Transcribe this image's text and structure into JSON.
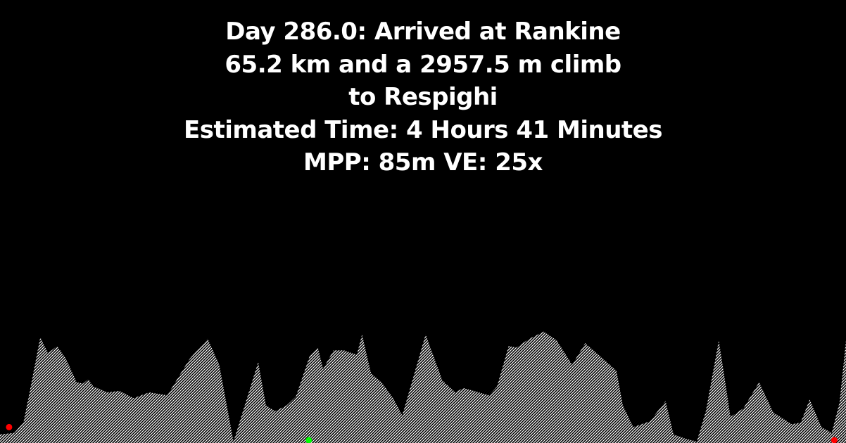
{
  "header": {
    "line1": "Day 286.0: Arrived at Rankine",
    "line2": "65.2 km and a 2957.5 m climb",
    "line3": "to Respighi",
    "line4": "Estimated Time: 4 Hours 41 Minutes",
    "line5": "MPP: 85m VE: 25x"
  },
  "colors": {
    "background": "#000000",
    "text": "#ffffff",
    "fill": "#ffffff",
    "start_marker": "#ff0000",
    "current_marker": "#00ff00",
    "end_marker": "#ff0000"
  },
  "chart_data": {
    "type": "area",
    "title": "",
    "xlabel": "",
    "ylabel": "",
    "grid": false,
    "legend": "none",
    "xlim": [
      0,
      65.2
    ],
    "ylim": [
      0,
      3.9
    ],
    "x": [
      0,
      1.1,
      1.8,
      2.3,
      3.1,
      3.7,
      4.4,
      5.1,
      5.9,
      6.4,
      6.8,
      7.2,
      8.3,
      9.2,
      10.3,
      11.5,
      12.9,
      14.6,
      16.0,
      16.9,
      18.0,
      19.9,
      20.5,
      21.2,
      22.1,
      22.8,
      23.9,
      24.5,
      24.9,
      25.7,
      26.5,
      27.5,
      27.9,
      28.6,
      29.4,
      30.3,
      31.0,
      32.8,
      34.1,
      35.1,
      35.7,
      36.9,
      37.7,
      38.3,
      39.2,
      39.8,
      40.8,
      41.9,
      42.9,
      44.1,
      45.1,
      46.5,
      47.5,
      48.0,
      48.8,
      50.1,
      51.3,
      51.9,
      52.8,
      53.7,
      54.4,
      55.4,
      56.3,
      57.3,
      58.5,
      59.6,
      60.5,
      61.0,
      61.7,
      62.4,
      63.3,
      64.1,
      64.7,
      65.2
    ],
    "values": [
      0.3,
      0.35,
      0.7,
      1.8,
      3.65,
      3.1,
      3.35,
      2.9,
      2.1,
      2.05,
      2.2,
      1.95,
      1.75,
      1.8,
      1.55,
      1.75,
      1.65,
      2.9,
      3.6,
      2.7,
      0.05,
      2.8,
      1.3,
      1.1,
      1.3,
      1.6,
      3.05,
      3.3,
      2.55,
      3.2,
      3.2,
      3.05,
      3.75,
      2.4,
      2.1,
      1.55,
      0.95,
      3.75,
      2.15,
      1.75,
      1.9,
      1.75,
      1.65,
      1.95,
      3.35,
      3.3,
      3.6,
      3.85,
      3.55,
      2.7,
      3.45,
      2.9,
      2.5,
      1.3,
      0.55,
      0.75,
      1.45,
      0.3,
      0.15,
      0.05,
      1.1,
      3.55,
      0.9,
      1.2,
      2.1,
      1.05,
      0.8,
      0.65,
      0.7,
      1.5,
      0.55,
      0.35,
      1.4,
      3.55
    ],
    "markers": [
      {
        "role": "start",
        "x": 0.7,
        "y": 0.55
      },
      {
        "role": "current",
        "x": 23.8,
        "y": 0.05
      },
      {
        "role": "end",
        "x": 64.3,
        "y": 0.05
      }
    ]
  }
}
